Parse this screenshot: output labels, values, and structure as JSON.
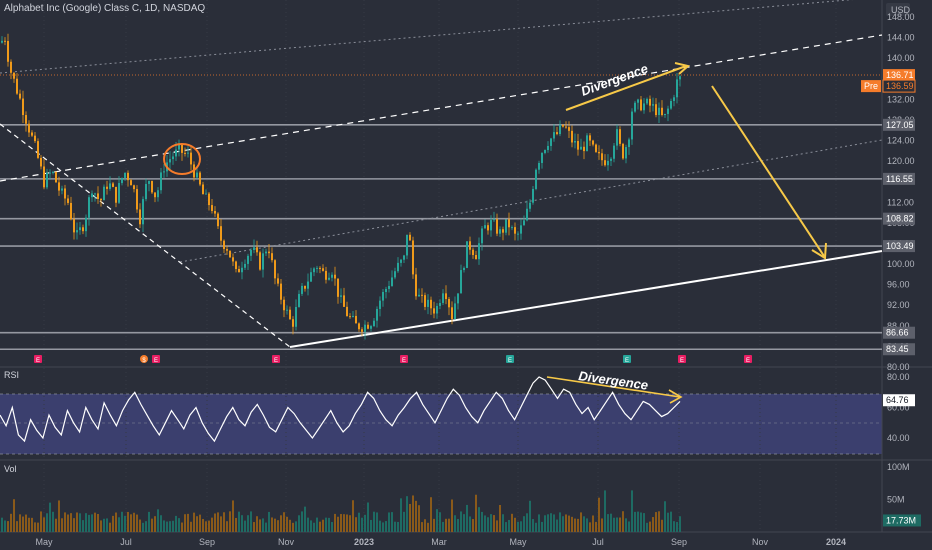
{
  "header": {
    "symbol": "Alphabet Inc (Google) Class C, 1D, NASDAQ",
    "currency": "USD"
  },
  "colors": {
    "bg": "#2a2e39",
    "up": "#26a69a",
    "down": "#ef9a1a",
    "accent": "#f7c948",
    "rsi_fill": "#3b3f6e",
    "white": "#ffffff"
  },
  "chart_data": [
    {
      "type": "candlestick",
      "title": "Alphabet Inc (Google) Class C, 1D, NASDAQ",
      "x_ticks": [
        "May",
        "Jul",
        "Sep",
        "Nov",
        "2023",
        "Mar",
        "May",
        "Jul",
        "Sep",
        "Nov",
        "2024"
      ],
      "y_ticks": [
        80.0,
        84.0,
        88.0,
        92.0,
        96.0,
        100.0,
        104.0,
        108.0,
        112.0,
        116.0,
        120.0,
        124.0,
        128.0,
        132.0,
        136.0,
        140.0,
        144.0,
        148.0
      ],
      "ylim": [
        80,
        148
      ],
      "price_path": [
        [
          0,
          143
        ],
        [
          5,
          144
        ],
        [
          10,
          138
        ],
        [
          20,
          132
        ],
        [
          28,
          127
        ],
        [
          36,
          122
        ],
        [
          44,
          116
        ],
        [
          52,
          118
        ],
        [
          60,
          114
        ],
        [
          68,
          112
        ],
        [
          76,
          105
        ],
        [
          84,
          108
        ],
        [
          92,
          115
        ],
        [
          100,
          112
        ],
        [
          108,
          116
        ],
        [
          116,
          113
        ],
        [
          124,
          118
        ],
        [
          132,
          116
        ],
        [
          140,
          109
        ],
        [
          148,
          117
        ],
        [
          156,
          113
        ],
        [
          164,
          119
        ],
        [
          172,
          121
        ],
        [
          180,
          122
        ],
        [
          188,
          121
        ],
        [
          196,
          117
        ],
        [
          204,
          113
        ],
        [
          212,
          111
        ],
        [
          220,
          105
        ],
        [
          228,
          103
        ],
        [
          236,
          98
        ],
        [
          244,
          101
        ],
        [
          252,
          103
        ],
        [
          260,
          100
        ],
        [
          268,
          104
        ],
        [
          276,
          96
        ],
        [
          284,
          92
        ],
        [
          292,
          88
        ],
        [
          300,
          94
        ],
        [
          308,
          97
        ],
        [
          316,
          100
        ],
        [
          324,
          98
        ],
        [
          332,
          99
        ],
        [
          340,
          93
        ],
        [
          348,
          90
        ],
        [
          356,
          88
        ],
        [
          364,
          88
        ],
        [
          372,
          89
        ],
        [
          380,
          93
        ],
        [
          388,
          96
        ],
        [
          396,
          99
        ],
        [
          404,
          101
        ],
        [
          408,
          108
        ],
        [
          414,
          96
        ],
        [
          420,
          93
        ],
        [
          428,
          92
        ],
        [
          436,
          91
        ],
        [
          444,
          96
        ],
        [
          452,
          90
        ],
        [
          460,
          97
        ],
        [
          468,
          104
        ],
        [
          476,
          102
        ],
        [
          484,
          107
        ],
        [
          492,
          108
        ],
        [
          500,
          106
        ],
        [
          508,
          108
        ],
        [
          516,
          105
        ],
        [
          524,
          108
        ],
        [
          530,
          112
        ],
        [
          536,
          119
        ],
        [
          542,
          122
        ],
        [
          548,
          124
        ],
        [
          556,
          125
        ],
        [
          564,
          127
        ],
        [
          572,
          124
        ],
        [
          580,
          122
        ],
        [
          588,
          124
        ],
        [
          596,
          121
        ],
        [
          604,
          120
        ],
        [
          612,
          122
        ],
        [
          616,
          126
        ],
        [
          622,
          121
        ],
        [
          628,
          124
        ],
        [
          632,
          130
        ],
        [
          640,
          131
        ],
        [
          648,
          131
        ],
        [
          656,
          130
        ],
        [
          664,
          128
        ],
        [
          672,
          132
        ],
        [
          678,
          136
        ]
      ],
      "horizontal_levels": [
        {
          "label": "127.05",
          "value": 127.05
        },
        {
          "label": "116.55",
          "value": 116.55
        },
        {
          "label": "108.82",
          "value": 108.82
        },
        {
          "label": "103.49",
          "value": 103.49
        },
        {
          "label": "86.66",
          "value": 86.66
        },
        {
          "label": "83.45",
          "value": 83.45
        }
      ],
      "last_price": {
        "label": "136.71",
        "value": 136.71
      },
      "pre_market": {
        "tag": "Pre",
        "label": "136.59",
        "value": 136.59
      },
      "annotations": [
        "Divergence"
      ],
      "event_markers": [
        "E",
        "$",
        "E",
        "E",
        "E",
        "E",
        "E",
        "E",
        "E"
      ]
    },
    {
      "type": "line",
      "title": "RSI",
      "y_ticks": [
        40.0,
        60.0,
        80.0
      ],
      "ylim": [
        28,
        90
      ],
      "band": [
        30,
        70
      ],
      "last_value": {
        "label": "64.76",
        "value": 64.76
      },
      "values": [
        55,
        48,
        60,
        42,
        38,
        52,
        45,
        40,
        55,
        47,
        42,
        58,
        50,
        44,
        60,
        52,
        46,
        63,
        55,
        48,
        58,
        65,
        70,
        62,
        55,
        48,
        42,
        50,
        58,
        52,
        46,
        55,
        60,
        50,
        43,
        38,
        46,
        54,
        60,
        52,
        48,
        57,
        62,
        55,
        47,
        44,
        52,
        60,
        56,
        50,
        45,
        40,
        46,
        52,
        58,
        50,
        44,
        48,
        56,
        62,
        70,
        66,
        58,
        52,
        48,
        55,
        60,
        66,
        70,
        62,
        56,
        50,
        58,
        66,
        72,
        68,
        60,
        54,
        50,
        58,
        64,
        70,
        66,
        58,
        52,
        60,
        68,
        76,
        80,
        78,
        72,
        66,
        72,
        70,
        62,
        56,
        60,
        52,
        58,
        64,
        70,
        62,
        56,
        52,
        58,
        64,
        62,
        58,
        54,
        56,
        60,
        64
      ],
      "annotations": [
        "Divergence"
      ]
    },
    {
      "type": "bar",
      "title": "Vol",
      "y_ticks": [
        "100M",
        "50M"
      ],
      "ylim": [
        0,
        100
      ],
      "last_value": {
        "label": "17.73M",
        "value": 17.73
      }
    }
  ]
}
